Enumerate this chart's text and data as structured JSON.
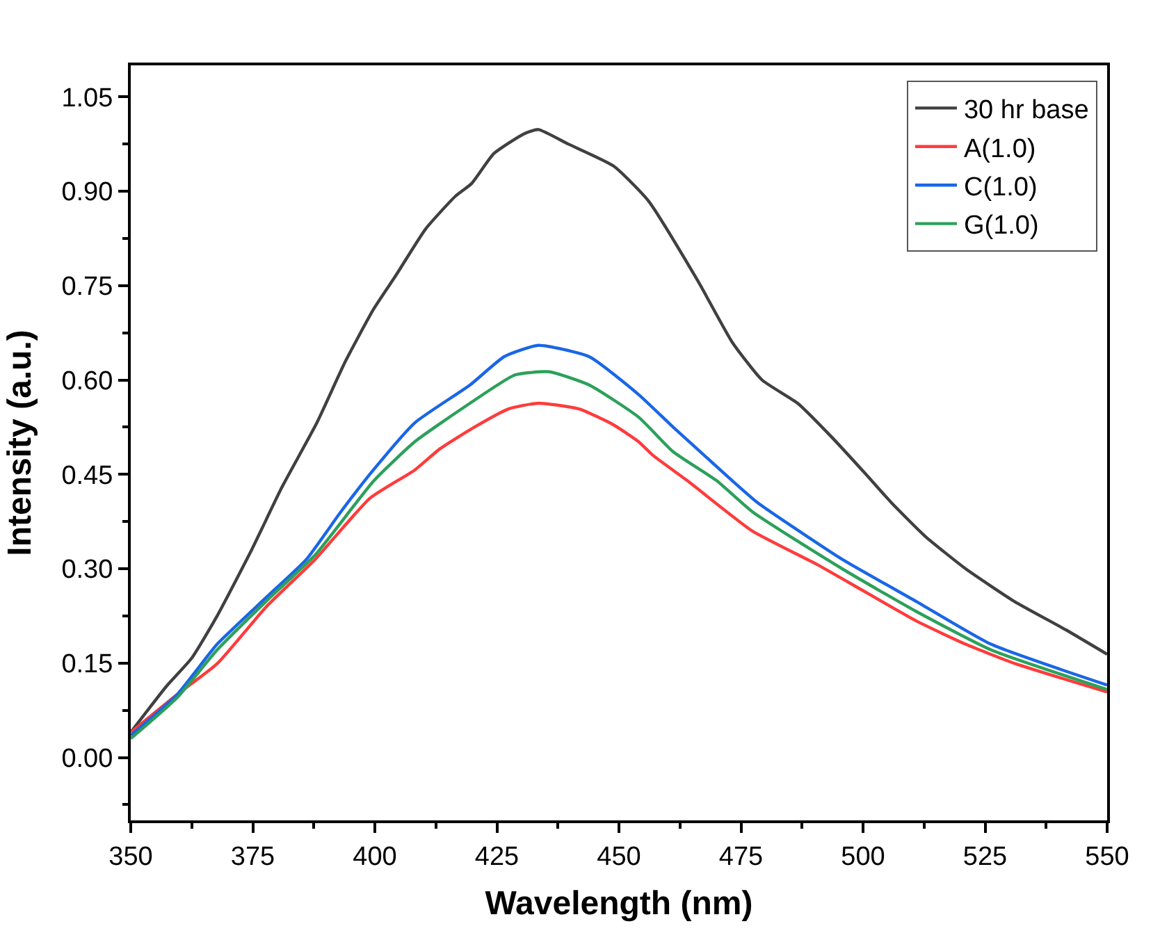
{
  "chart_data": {
    "type": "line",
    "xlabel": "Wavelength (nm)",
    "ylabel": "Intensity (a.u.)",
    "xlim": [
      350,
      550
    ],
    "ylim": [
      -0.1,
      1.1
    ],
    "xticks": [
      350,
      {
        "value": 362.5,
        "label": null
      },
      375,
      {
        "value": 387.5,
        "label": null
      },
      400,
      {
        "value": 412.5,
        "label": null
      },
      425,
      {
        "value": 437.5,
        "label": null
      },
      450,
      {
        "value": 462.5,
        "label": null
      },
      475,
      {
        "value": 487.5,
        "label": null
      },
      500,
      {
        "value": 512.5,
        "label": null
      },
      525,
      {
        "value": 537.5,
        "label": null
      },
      550
    ],
    "yticks": [
      {
        "value": -0.075,
        "label": null
      },
      {
        "value": 0,
        "label": "0.00"
      },
      {
        "value": 0.075,
        "label": null
      },
      {
        "value": 0.15,
        "label": "0.15"
      },
      {
        "value": 0.225,
        "label": null
      },
      {
        "value": 0.3,
        "label": "0.30"
      },
      {
        "value": 0.375,
        "label": null
      },
      {
        "value": 0.45,
        "label": "0.45"
      },
      {
        "value": 0.525,
        "label": null
      },
      {
        "value": 0.6,
        "label": "0.60"
      },
      {
        "value": 0.675,
        "label": null
      },
      {
        "value": 0.75,
        "label": "0.75"
      },
      {
        "value": 0.825,
        "label": null
      },
      {
        "value": 0.9,
        "label": "0.90"
      },
      {
        "value": 0.975,
        "label": null
      },
      {
        "value": 1.05,
        "label": "1.05"
      }
    ],
    "grid": false,
    "legend": "top right",
    "marker": "none",
    "line_style": "solid",
    "series": [
      {
        "name": "30 hr base",
        "color": "#404040",
        "x": [
          350,
          357.3,
          362.5,
          367.7,
          374.7,
          381,
          388,
          394,
          399.7,
          404.3,
          410.4,
          416.5,
          419.8,
          424.4,
          430.5,
          433.5,
          439.6,
          448.9,
          456,
          466.2,
          473.2,
          479.3,
          486.6,
          493.6,
          500.6,
          505.8,
          512.8,
          521,
          531,
          541.5,
          550
        ],
        "values": [
          0.04,
          0.113,
          0.158,
          0.225,
          0.329,
          0.43,
          0.53,
          0.63,
          0.712,
          0.766,
          0.84,
          0.892,
          0.912,
          0.96,
          0.991,
          0.998,
          0.975,
          0.94,
          0.885,
          0.757,
          0.66,
          0.6,
          0.563,
          0.509,
          0.45,
          0.405,
          0.351,
          0.3,
          0.248,
          0.203,
          0.164
        ]
      },
      {
        "name": "A(1.0)",
        "color": "#ff3b3b",
        "x": [
          350,
          359.5,
          367.7,
          377.7,
          387.8,
          399,
          408.2,
          413.4,
          420.4,
          427.4,
          433.5,
          441.8,
          448.8,
          454,
          457,
          464,
          477.3,
          490.5,
          500.7,
          510.9,
          521,
          531.2,
          550
        ],
        "values": [
          0.04,
          0.1,
          0.149,
          0.239,
          0.315,
          0.412,
          0.457,
          0.491,
          0.525,
          0.554,
          0.563,
          0.554,
          0.529,
          0.502,
          0.48,
          0.44,
          0.36,
          0.307,
          0.262,
          0.217,
          0.18,
          0.149,
          0.104
        ]
      },
      {
        "name": "C(1.0)",
        "color": "#1a66e6",
        "x": [
          350,
          359.5,
          367.7,
          377.7,
          386,
          393,
          399.7,
          408.2,
          419.5,
          426.5,
          433.5,
          443.9,
          454,
          461.1,
          473.2,
          478.4,
          495.7,
          510.9,
          526.2,
          550
        ],
        "values": [
          0.035,
          0.1,
          0.18,
          0.254,
          0.315,
          0.39,
          0.457,
          0.532,
          0.592,
          0.637,
          0.655,
          0.637,
          0.577,
          0.525,
          0.44,
          0.405,
          0.315,
          0.248,
          0.18,
          0.115
        ]
      },
      {
        "name": "G(1.0)",
        "color": "#2ca05a",
        "x": [
          350,
          359.5,
          367.7,
          377.7,
          387.8,
          399.7,
          408.2,
          419.5,
          428.7,
          435.7,
          443.9,
          454,
          461.1,
          470,
          477.4,
          495.7,
          510.9,
          526.2,
          550
        ],
        "values": [
          0.03,
          0.095,
          0.171,
          0.248,
          0.322,
          0.439,
          0.502,
          0.563,
          0.608,
          0.613,
          0.592,
          0.541,
          0.486,
          0.44,
          0.39,
          0.3,
          0.232,
          0.171,
          0.108
        ]
      }
    ]
  }
}
